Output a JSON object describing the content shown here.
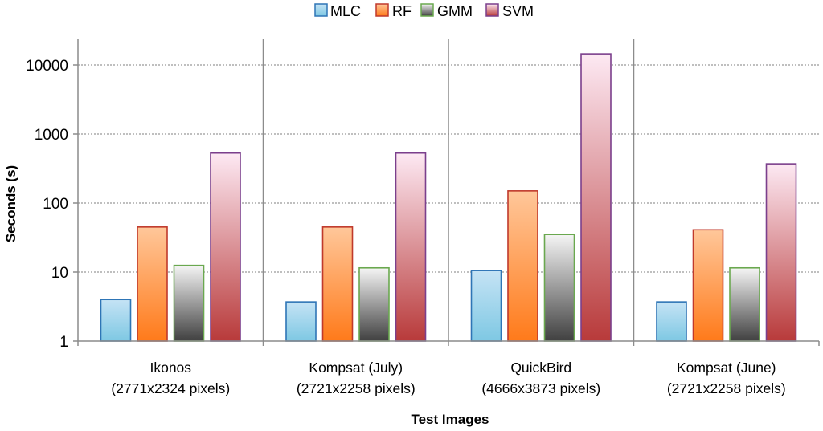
{
  "chart_data": {
    "type": "bar",
    "title": "",
    "xlabel": "Test Images",
    "ylabel": "Seconds (s)",
    "yscale": "log",
    "ylim": [
      1,
      20000
    ],
    "yticks": [
      1,
      10,
      100,
      1000,
      10000
    ],
    "ytick_labels": [
      "1",
      "10",
      "100",
      "1000",
      "10000"
    ],
    "grid": "horizontal dotted",
    "legend_position": "top-center",
    "categories": [
      {
        "name": "Ikonos",
        "size": "(2771x2324 pixels)"
      },
      {
        "name": "Kompsat (July)",
        "size": "(2721x2258 pixels)"
      },
      {
        "name": "QuickBird",
        "size": "(4666x3873 pixels)"
      },
      {
        "name": "Kompsat (June)",
        "size": "(2721x2258 pixels)"
      }
    ],
    "series": [
      {
        "name": "MLC",
        "values": [
          4.0,
          3.7,
          10.5,
          3.7
        ],
        "color_top": "#c5e3f5",
        "color_bottom": "#7ec8e3",
        "stroke": "#2e75b6"
      },
      {
        "name": "RF",
        "values": [
          45,
          45,
          150,
          41
        ],
        "color_top": "#ffc79a",
        "color_bottom": "#ff7a1a",
        "stroke": "#c0392b"
      },
      {
        "name": "GMM",
        "values": [
          12.5,
          11.5,
          35,
          11.5
        ],
        "color_top": "#f5f5f5",
        "color_bottom": "#404040",
        "stroke": "#6aa84f"
      },
      {
        "name": "SVM",
        "values": [
          530,
          530,
          14500,
          370
        ],
        "color_top": "#fde9f3",
        "color_bottom": "#b83a3a",
        "stroke": "#7b3f8c"
      }
    ]
  }
}
